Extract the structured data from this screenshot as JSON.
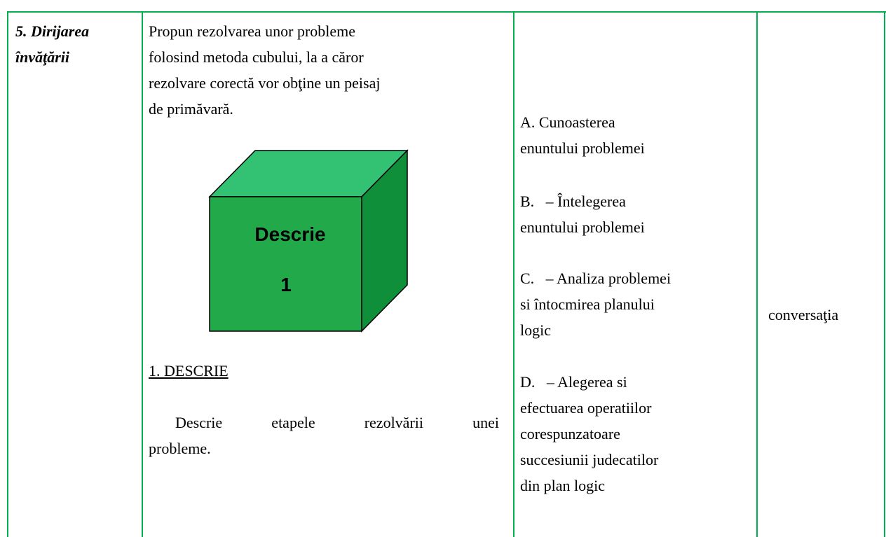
{
  "table": {
    "stage": [
      "5. Dirijarea",
      "învăţării"
    ],
    "activity": {
      "intro": [
        "Propun rezolvarea unor probleme",
        "folosind metoda cubului, la a căror",
        "rezolvare corectă vor obţine un peisaj",
        "de primăvară."
      ],
      "cube": [
        "Descrie",
        "1"
      ],
      "heading": "1. DESCRIE",
      "task": [
        "Descrie etapele rezolvării unei",
        "probleme."
      ]
    },
    "steps": [
      [
        "A. Cunoasterea",
        "enuntului problemei"
      ],
      [
        "B.   – Întelegerea",
        "enuntului problemei"
      ],
      [
        "C.   – Analiza problemei",
        "si întocmirea planului",
        "logic"
      ],
      [
        "D.   – Alegerea si",
        "efectuarea operatiilor",
        "corespunzatoare",
        "succesiunii judecatilor",
        "din plan logic"
      ]
    ],
    "method": "conversaţia"
  }
}
